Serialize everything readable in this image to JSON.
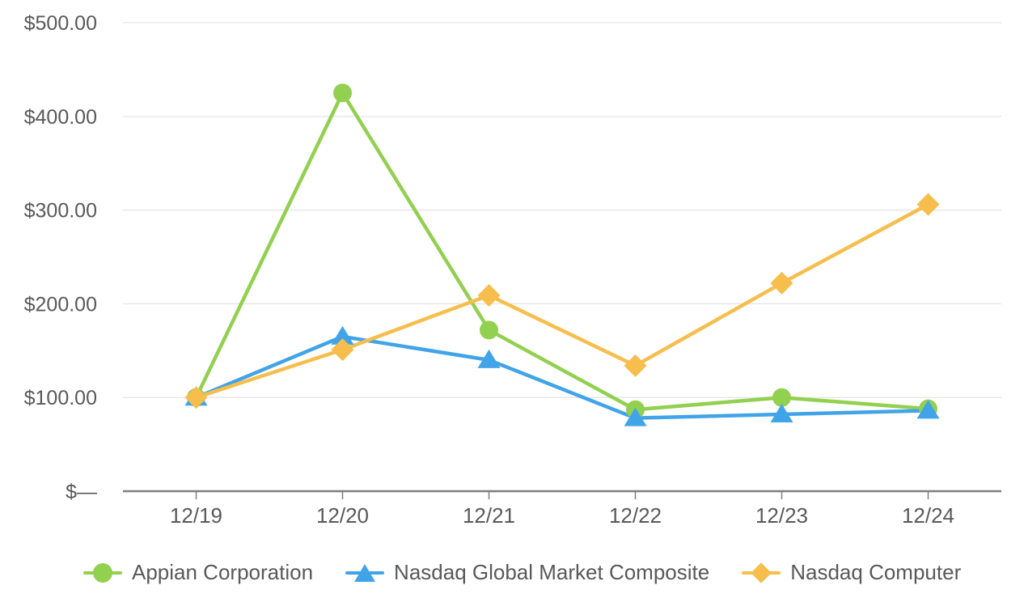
{
  "page": {
    "background_color": "#FFFFFF"
  },
  "chart_data": {
    "type": "line",
    "title": "",
    "xlabel": "",
    "ylabel": "",
    "categories": [
      "12/19",
      "12/20",
      "12/21",
      "12/22",
      "12/23",
      "12/24"
    ],
    "series": [
      {
        "name": "Appian Corporation",
        "marker": "circle",
        "color": "#92D050",
        "values": [
          100,
          425,
          172,
          87,
          100,
          88
        ]
      },
      {
        "name": "Nasdaq Global Market Composite",
        "marker": "triangle",
        "color": "#41A4E8",
        "values": [
          100,
          165,
          140,
          78,
          82,
          86
        ]
      },
      {
        "name": "Nasdaq Computer",
        "marker": "diamond",
        "color": "#F7BE4D",
        "values": [
          100,
          151,
          209,
          134,
          222,
          306
        ]
      }
    ],
    "ylim": [
      0,
      500
    ],
    "y_ticks": [
      {
        "value": 0,
        "label": "$—"
      },
      {
        "value": 100,
        "label": "$100.00"
      },
      {
        "value": 200,
        "label": "$200.00"
      },
      {
        "value": 300,
        "label": "$300.00"
      },
      {
        "value": 400,
        "label": "$400.00"
      },
      {
        "value": 500,
        "label": "$500.00"
      }
    ],
    "grid": true,
    "legend_position": "bottom",
    "grid_color": "#E8E8E8",
    "axis_color": "#7F7F7F",
    "label_color": "#595959"
  }
}
